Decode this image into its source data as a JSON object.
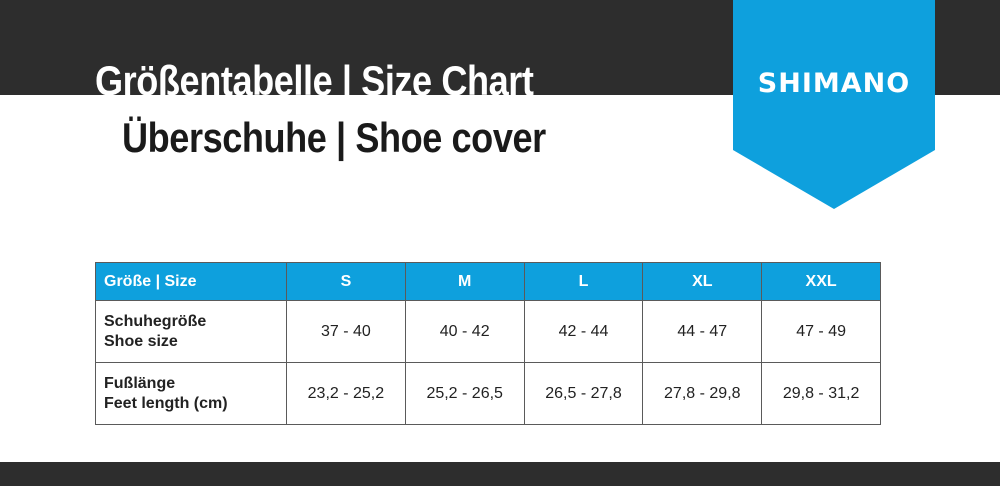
{
  "title": "Größentabelle | Size Chart",
  "subtitle": "Überschuhe | Shoe cover",
  "brand": {
    "logo_text": "SHIMANO",
    "color": "#0ea0dd"
  },
  "colors": {
    "dark_band": "#2d2d2d",
    "accent": "#0ea0dd"
  },
  "table": {
    "header": {
      "label": "Größe | Size",
      "sizes": [
        "S",
        "M",
        "L",
        "XL",
        "XXL"
      ]
    },
    "rows": [
      {
        "label_de": "Schuhegröße",
        "label_en": "Shoe size",
        "values": [
          "37 - 40",
          "40 - 42",
          "42 - 44",
          "44 - 47",
          "47 - 49"
        ]
      },
      {
        "label_de": "Fußlänge",
        "label_en": "Feet length (cm)",
        "values": [
          "23,2 - 25,2",
          "25,2 - 26,5",
          "26,5 - 27,8",
          "27,8 - 29,8",
          "29,8 - 31,2"
        ]
      }
    ]
  }
}
